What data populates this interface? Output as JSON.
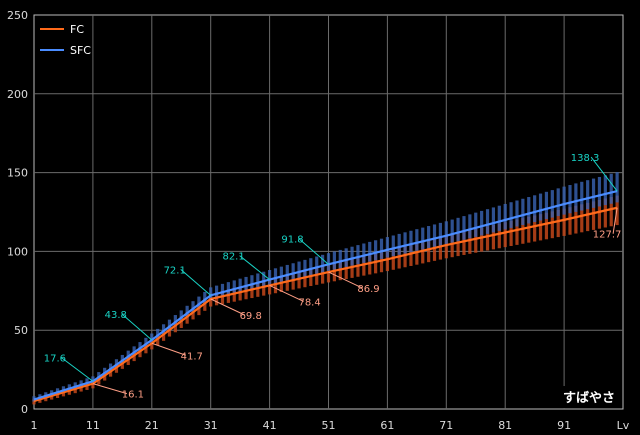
{
  "chart_data": {
    "type": "line",
    "title": "",
    "xlabel": "Lv",
    "ylabel": "",
    "x_ticks": [
      "1",
      "11",
      "21",
      "31",
      "41",
      "51",
      "61",
      "71",
      "81",
      "91"
    ],
    "xlim": [
      1,
      101
    ],
    "ylim": [
      0,
      250
    ],
    "y_ticks": [
      0,
      50,
      100,
      150,
      200,
      250
    ],
    "grid": true,
    "legend_position": "top-left",
    "background": "#000000",
    "grid_color": "#6b6b6b",
    "series": [
      {
        "name": "FC",
        "color": "#ff6a1a",
        "band_color": "#c2461a",
        "x": [
          1,
          11,
          21,
          31,
          41,
          51,
          61,
          71,
          81,
          91,
          100
        ],
        "values": [
          5,
          16.1,
          41.7,
          69.8,
          78.4,
          86.9,
          95,
          104,
          112,
          120,
          127.7
        ]
      },
      {
        "name": "SFC",
        "color": "#4a8cff",
        "band_color": "#3a64b4",
        "x": [
          1,
          11,
          21,
          31,
          41,
          51,
          61,
          71,
          81,
          91,
          100
        ],
        "values": [
          6,
          17.6,
          43.8,
          72.1,
          82.1,
          91.8,
          101,
          110,
          120,
          130,
          138.3
        ]
      }
    ],
    "annotations": [
      {
        "series": "FC",
        "x": 11,
        "y": 16.1,
        "text": "16.1",
        "color": "#ff9f86"
      },
      {
        "series": "FC",
        "x": 21,
        "y": 41.7,
        "text": "41.7",
        "color": "#ff9f86"
      },
      {
        "series": "FC",
        "x": 31,
        "y": 69.8,
        "text": "69.8",
        "color": "#ff9f86"
      },
      {
        "series": "FC",
        "x": 41,
        "y": 78.4,
        "text": "78.4",
        "color": "#ff9f86"
      },
      {
        "series": "FC",
        "x": 51,
        "y": 86.9,
        "text": "86.9",
        "color": "#ff9f86"
      },
      {
        "series": "FC",
        "x": 100,
        "y": 127.7,
        "text": "127.7",
        "color": "#ff9f86"
      },
      {
        "series": "SFC",
        "x": 11,
        "y": 17.6,
        "text": "17.6",
        "color": "#19d3c5"
      },
      {
        "series": "SFC",
        "x": 21,
        "y": 43.8,
        "text": "43.8",
        "color": "#19d3c5"
      },
      {
        "series": "SFC",
        "x": 31,
        "y": 72.1,
        "text": "72.1",
        "color": "#19d3c5"
      },
      {
        "series": "SFC",
        "x": 41,
        "y": 82.1,
        "text": "82.1",
        "color": "#19d3c5"
      },
      {
        "series": "SFC",
        "x": 51,
        "y": 91.8,
        "text": "91.8",
        "color": "#19d3c5"
      },
      {
        "series": "SFC",
        "x": 100,
        "y": 138.3,
        "text": "138.3",
        "color": "#19d3c5"
      }
    ]
  },
  "watermark": "すばやさ"
}
